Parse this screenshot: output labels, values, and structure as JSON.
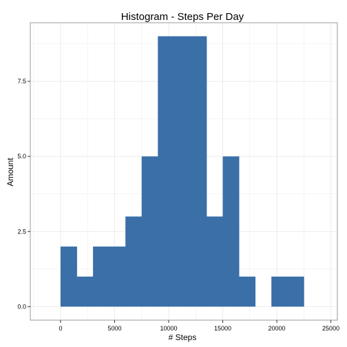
{
  "chart_data": {
    "type": "bar",
    "title": "Histogram - Steps Per Day",
    "xlabel": "# Steps",
    "ylabel": "Amount",
    "bin_width": 1500,
    "bins": [
      {
        "x0": 0,
        "x1": 1500,
        "count": 2
      },
      {
        "x0": 1500,
        "x1": 3000,
        "count": 1
      },
      {
        "x0": 3000,
        "x1": 4500,
        "count": 2
      },
      {
        "x0": 4500,
        "x1": 6000,
        "count": 2
      },
      {
        "x0": 6000,
        "x1": 7500,
        "count": 3
      },
      {
        "x0": 7500,
        "x1": 9000,
        "count": 5
      },
      {
        "x0": 9000,
        "x1": 10500,
        "count": 9
      },
      {
        "x0": 10500,
        "x1": 12000,
        "count": 9
      },
      {
        "x0": 12000,
        "x1": 13500,
        "count": 9
      },
      {
        "x0": 13500,
        "x1": 15000,
        "count": 3
      },
      {
        "x0": 15000,
        "x1": 16500,
        "count": 5
      },
      {
        "x0": 16500,
        "x1": 18000,
        "count": 1
      },
      {
        "x0": 18000,
        "x1": 19500,
        "count": 0
      },
      {
        "x0": 19500,
        "x1": 21000,
        "count": 1
      },
      {
        "x0": 21000,
        "x1": 22500,
        "count": 1
      }
    ],
    "xlim": [
      -2800,
      25600
    ],
    "ylim": [
      -0.45,
      9.45
    ],
    "x_ticks": [
      0,
      5000,
      10000,
      15000,
      20000,
      25000
    ],
    "x_tick_labels": [
      "0",
      "5000",
      "10000",
      "15000",
      "20000",
      "25000"
    ],
    "y_ticks": [
      0,
      2.5,
      5,
      7.5
    ],
    "y_tick_labels": [
      "0.0",
      "2.5",
      "5.0",
      "7.5"
    ],
    "grid": true,
    "bar_color": "#3A6FA8",
    "grid_color": "#EBEBEB",
    "panel_border_color": "#999999"
  }
}
